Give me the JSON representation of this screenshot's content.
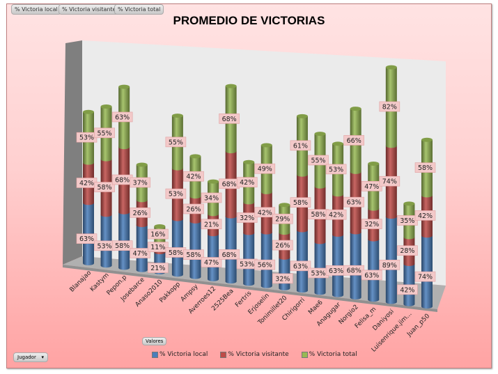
{
  "field_buttons": [
    "% Victoria local",
    "% Victoria visitante",
    "% Victoria total"
  ],
  "values_button": "Valores",
  "axis_field_button": "Jugador",
  "colors": {
    "local": "#4a7ebb",
    "visitante": "#be4b48",
    "total": "#98b954",
    "label_bg": "#f3c9c9"
  },
  "chart_data": {
    "type": "bar",
    "subtype": "3d-stacked-cylinder",
    "title": "PROMEDIO DE VICTORIAS",
    "xlabel": "",
    "ylabel": "",
    "legend_position": "bottom",
    "categories": [
      "Blanajao",
      "Kastym",
      "Pepon.p",
      "Josebarce",
      "Anaso2010",
      "Pakkopp",
      "Ampsy",
      "Averroes12",
      "2525Bea",
      "Fertris",
      "Erjoselin",
      "Tonimillet20",
      "Chirigorri",
      "Mae6",
      "Anagugar",
      "Norgio2",
      "Felisa_m",
      "Daniyosi",
      "Luisenrique.jim...",
      "Juan_p50"
    ],
    "series": [
      {
        "name": "% Victoria local",
        "values": [
          63,
          53,
          58,
          47,
          21,
          58,
          58,
          47,
          68,
          53,
          56,
          32,
          63,
          53,
          63,
          68,
          63,
          89,
          42,
          74
        ]
      },
      {
        "name": "% Victoria visitante",
        "values": [
          42,
          58,
          68,
          26,
          11,
          53,
          26,
          21,
          68,
          32,
          42,
          26,
          58,
          58,
          42,
          63,
          32,
          74,
          28,
          42
        ]
      },
      {
        "name": "% Victoria total",
        "values": [
          53,
          55,
          63,
          37,
          16,
          55,
          42,
          34,
          68,
          42,
          49,
          29,
          61,
          55,
          53,
          66,
          47,
          82,
          35,
          58
        ]
      }
    ]
  }
}
